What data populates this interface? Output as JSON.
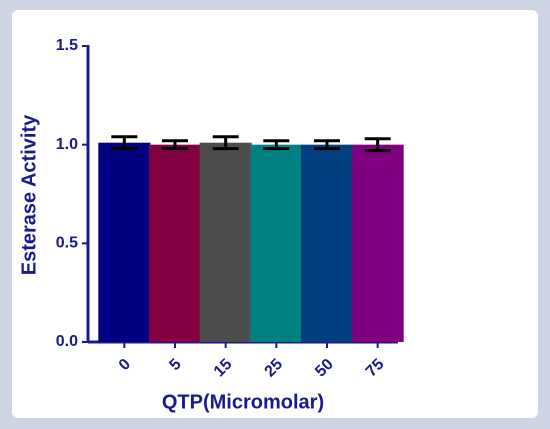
{
  "chart_data": {
    "type": "bar",
    "x_label": "QTP(Micromolar)",
    "y_label": "Esterase Activity",
    "categories": [
      "0",
      "5",
      "15",
      "25",
      "50",
      "75"
    ],
    "values": [
      1.01,
      1.0,
      1.01,
      1.0,
      1.0,
      1.0
    ],
    "errors": [
      0.03,
      0.02,
      0.03,
      0.02,
      0.02,
      0.03
    ],
    "colors": [
      "#000080",
      "#800040",
      "#4d4d4d",
      "#008080",
      "#004080",
      "#800080"
    ],
    "ylim": [
      0,
      1.5
    ],
    "yticks": [
      {
        "value": 0,
        "label": "0.0"
      },
      0.5,
      {
        "value": 1,
        "label": "1.0"
      },
      {
        "value": 1.5,
        "label": "1.5"
      }
    ]
  }
}
